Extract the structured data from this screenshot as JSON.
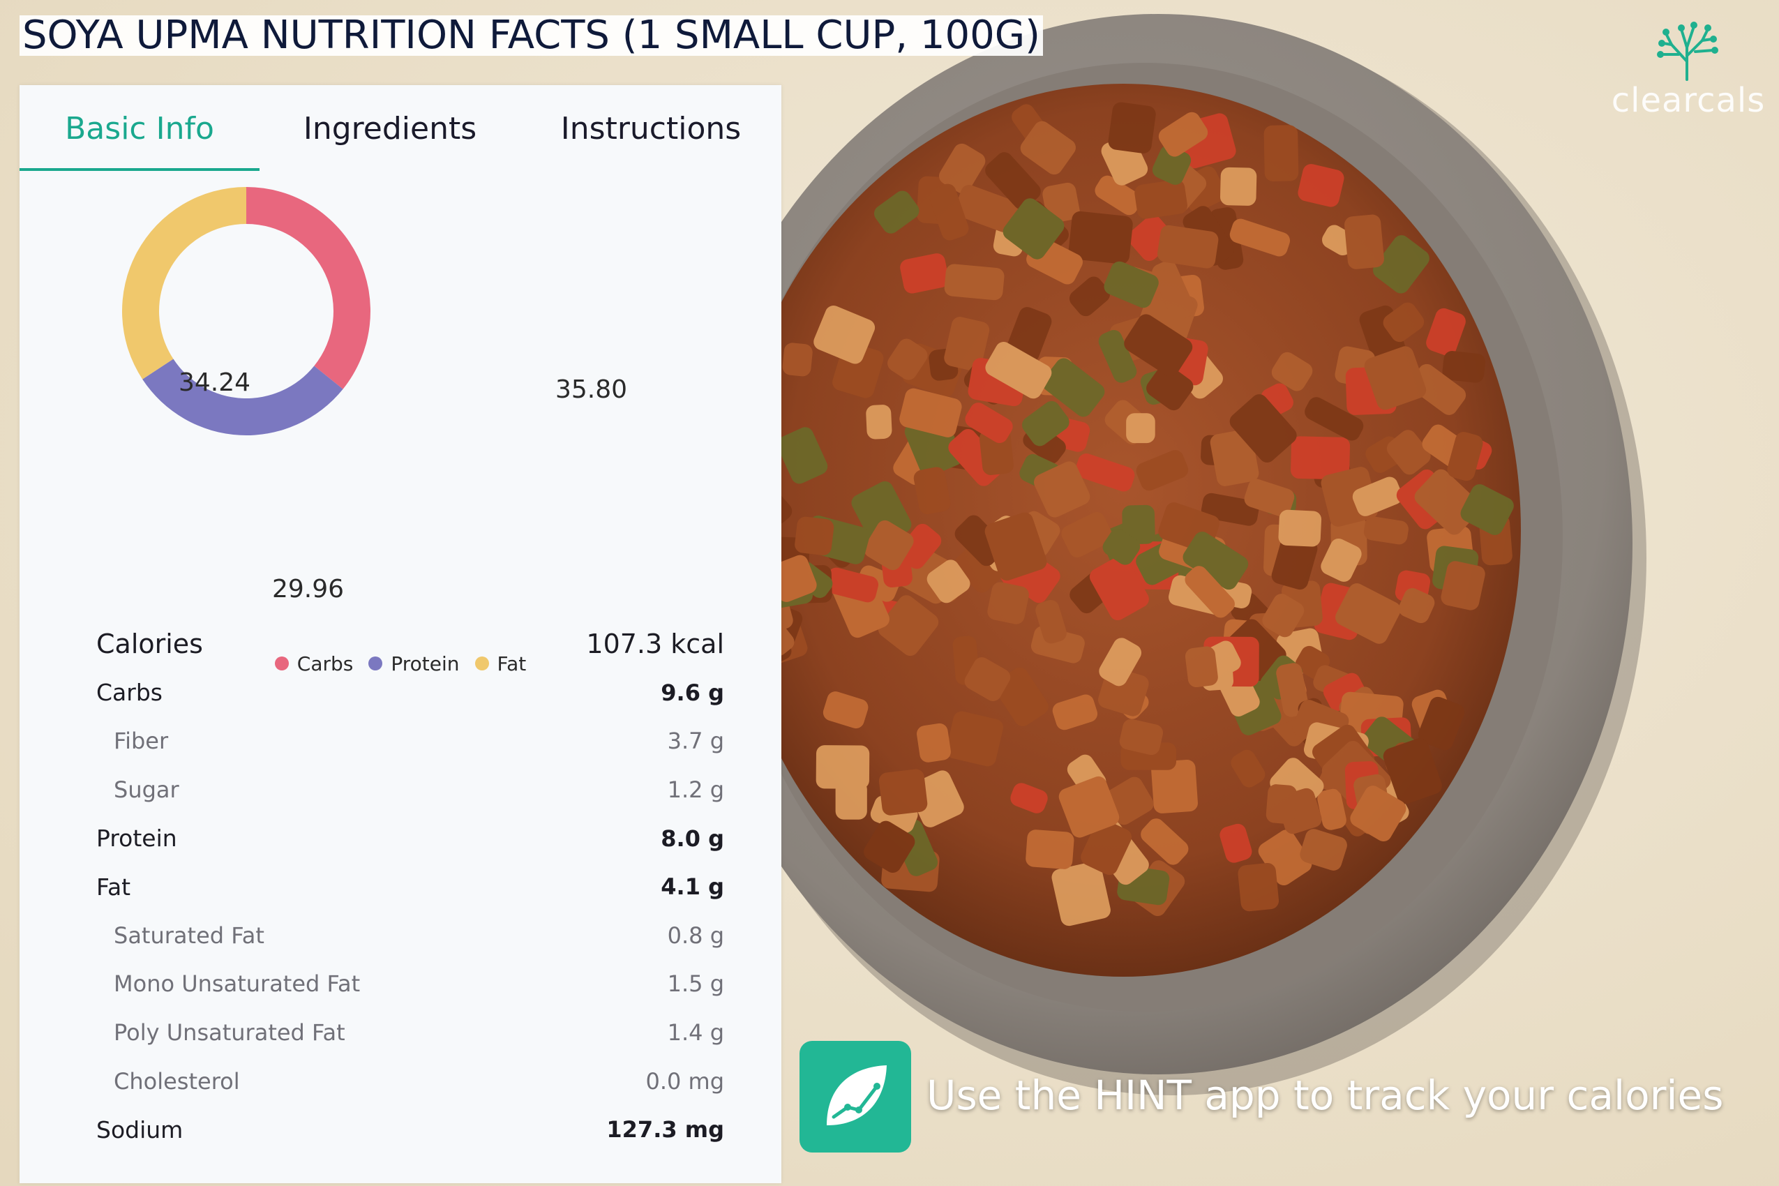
{
  "title": "SOYA UPMA NUTRITION FACTS (1 SMALL CUP, 100G)",
  "brand": {
    "name": "clearcals",
    "logo_icon": "coral-tree-icon"
  },
  "tabs": [
    {
      "label": "Basic Info",
      "active": true
    },
    {
      "label": "Ingredients",
      "active": false
    },
    {
      "label": "Instructions",
      "active": false
    }
  ],
  "chart_data": {
    "type": "pie",
    "style": "donut",
    "categories": [
      "Carbs",
      "Protein",
      "Fat"
    ],
    "values": [
      35.8,
      29.96,
      34.24
    ],
    "value_labels": [
      "35.80",
      "29.96",
      "34.24"
    ],
    "colors": [
      "#e8677e",
      "#7b78c0",
      "#f0c86c"
    ],
    "legend_position": "bottom"
  },
  "nutrition": {
    "calories": {
      "label": "Calories",
      "value": "107.3 kcal"
    },
    "rows": [
      {
        "label": "Carbs",
        "value": "9.6 g",
        "level": "main"
      },
      {
        "label": "Fiber",
        "value": "3.7 g",
        "level": "sub"
      },
      {
        "label": "Sugar",
        "value": "1.2 g",
        "level": "sub"
      },
      {
        "label": "Protein",
        "value": "8.0 g",
        "level": "main"
      },
      {
        "label": "Fat",
        "value": "4.1 g",
        "level": "main"
      },
      {
        "label": "Saturated Fat",
        "value": "0.8 g",
        "level": "sub"
      },
      {
        "label": "Mono Unsaturated Fat",
        "value": "1.5 g",
        "level": "sub"
      },
      {
        "label": "Poly Unsaturated Fat",
        "value": "1.4 g",
        "level": "sub"
      },
      {
        "label": "Cholesterol",
        "value": "0.0 mg",
        "level": "sub"
      },
      {
        "label": "Sodium",
        "value": "127.3 mg",
        "level": "main"
      }
    ]
  },
  "promo": {
    "text": "Use the HINT app to track your calories",
    "icon": "leaf-chart-icon"
  },
  "colors": {
    "accent": "#1aa88e",
    "promo_icon_bg": "#22b795"
  }
}
